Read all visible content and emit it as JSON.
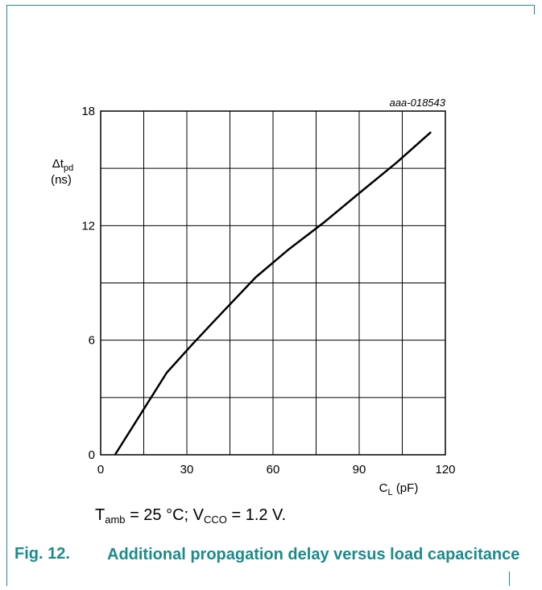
{
  "figure": {
    "id": "aaa-018543",
    "number": "Fig. 12.",
    "title": "Additional propagation delay versus load capacitance",
    "condition": {
      "t_sym": "T",
      "t_sub": "amb",
      "t_val": " = 25 °C; ",
      "v_sym": "V",
      "v_sub": "CCO",
      "v_val": " = 1.2 V."
    }
  },
  "chart_data": {
    "type": "line",
    "ylabel_symbol": "Δt",
    "ylabel_sub": "pd",
    "ylabel_unit": "(ns)",
    "xlabel_symbol": "C",
    "xlabel_sub": "L",
    "xlabel_unit": "(pF)",
    "xlim": [
      0,
      120
    ],
    "ylim": [
      0,
      18
    ],
    "xticks": [
      0,
      30,
      60,
      90,
      120
    ],
    "yticks": [
      0,
      6,
      12,
      18
    ],
    "x_grid_step": 15,
    "y_grid_step": 3,
    "grid": true,
    "series": [
      {
        "x": [
          5,
          23,
          32,
          42,
          54,
          65,
          78,
          90,
          103,
          115
        ],
        "y": [
          0,
          4.3,
          5.8,
          7.4,
          9.3,
          10.7,
          12.2,
          13.7,
          15.3,
          16.9
        ]
      }
    ],
    "colors": {
      "line": "#000000",
      "grid": "#000000",
      "accent": "#1c8a8a"
    }
  }
}
